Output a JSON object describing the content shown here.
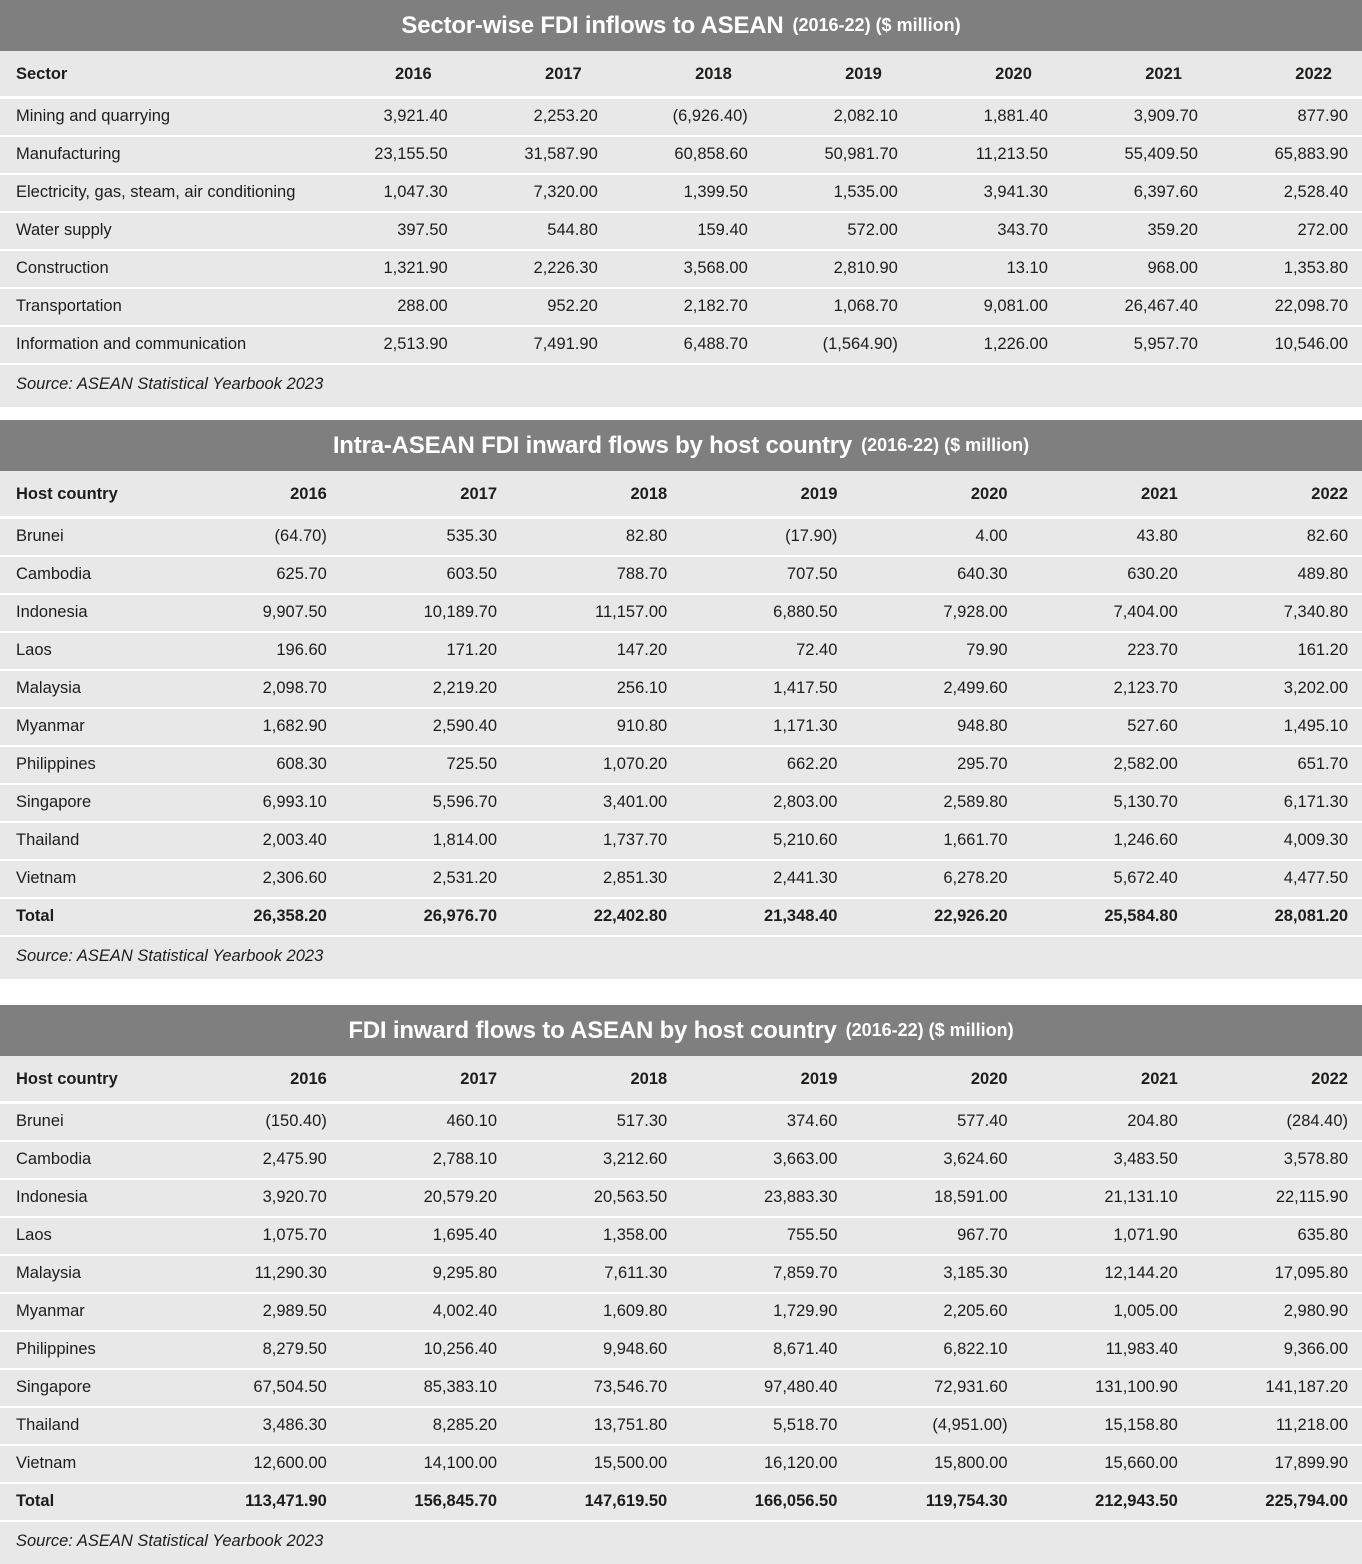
{
  "colors": {
    "title_bar_bg": "#7f7f7f",
    "title_text": "#ffffff",
    "table_bg": "#e8e8e8",
    "row_separator": "#ffffff",
    "body_text": "#1d1d1b"
  },
  "tables": [
    {
      "title_main": "Sector-wise FDI inflows to ASEAN",
      "title_sub": "(2016-22) ($ million)",
      "first_col_header": "Sector",
      "years": [
        "2016",
        "2017",
        "2018",
        "2019",
        "2020",
        "2021",
        "2022"
      ],
      "rows": [
        {
          "label": "Mining and quarrying",
          "values": [
            "3,921.40",
            "2,253.20",
            "(6,926.40)",
            "2,082.10",
            "1,881.40",
            "3,909.70",
            "877.90"
          ]
        },
        {
          "label": "Manufacturing",
          "values": [
            "23,155.50",
            "31,587.90",
            "60,858.60",
            "50,981.70",
            "11,213.50",
            "55,409.50",
            "65,883.90"
          ]
        },
        {
          "label": "Electricity, gas, steam, air conditioning",
          "values": [
            "1,047.30",
            "7,320.00",
            "1,399.50",
            "1,535.00",
            "3,941.30",
            "6,397.60",
            "2,528.40"
          ]
        },
        {
          "label": "Water supply",
          "values": [
            "397.50",
            "544.80",
            "159.40",
            "572.00",
            "343.70",
            "359.20",
            "272.00"
          ]
        },
        {
          "label": "Construction",
          "values": [
            "1,321.90",
            "2,226.30",
            "3,568.00",
            "2,810.90",
            "13.10",
            "968.00",
            "1,353.80"
          ]
        },
        {
          "label": "Transportation",
          "values": [
            "288.00",
            "952.20",
            "2,182.70",
            "1,068.70",
            "9,081.00",
            "26,467.40",
            "22,098.70"
          ]
        },
        {
          "label": "Information and communication",
          "values": [
            "2,513.90",
            "7,491.90",
            "6,488.70",
            "(1,564.90)",
            "1,226.00",
            "5,957.70",
            "10,546.00"
          ]
        }
      ],
      "source": "Source: ASEAN Statistical Yearbook 2023"
    },
    {
      "title_main": "Intra-ASEAN FDI inward flows by host country",
      "title_sub": "(2016-22) ($ million)",
      "first_col_header": "Host country",
      "years": [
        "2016",
        "2017",
        "2018",
        "2019",
        "2020",
        "2021",
        "2022"
      ],
      "rows": [
        {
          "label": "Brunei",
          "values": [
            "(64.70)",
            "535.30",
            "82.80",
            "(17.90)",
            "4.00",
            "43.80",
            "82.60"
          ]
        },
        {
          "label": "Cambodia",
          "values": [
            "625.70",
            "603.50",
            "788.70",
            "707.50",
            "640.30",
            "630.20",
            "489.80"
          ]
        },
        {
          "label": "Indonesia",
          "values": [
            "9,907.50",
            "10,189.70",
            "11,157.00",
            "6,880.50",
            "7,928.00",
            "7,404.00",
            "7,340.80"
          ]
        },
        {
          "label": "Laos",
          "values": [
            "196.60",
            "171.20",
            "147.20",
            "72.40",
            "79.90",
            "223.70",
            "161.20"
          ]
        },
        {
          "label": "Malaysia",
          "values": [
            "2,098.70",
            "2,219.20",
            "256.10",
            "1,417.50",
            "2,499.60",
            "2,123.70",
            "3,202.00"
          ]
        },
        {
          "label": "Myanmar",
          "values": [
            "1,682.90",
            "2,590.40",
            "910.80",
            "1,171.30",
            "948.80",
            "527.60",
            "1,495.10"
          ]
        },
        {
          "label": "Philippines",
          "values": [
            "608.30",
            "725.50",
            "1,070.20",
            "662.20",
            "295.70",
            "2,582.00",
            "651.70"
          ]
        },
        {
          "label": "Singapore",
          "values": [
            "6,993.10",
            "5,596.70",
            "3,401.00",
            "2,803.00",
            "2,589.80",
            "5,130.70",
            "6,171.30"
          ]
        },
        {
          "label": "Thailand",
          "values": [
            "2,003.40",
            "1,814.00",
            "1,737.70",
            "5,210.60",
            "1,661.70",
            "1,246.60",
            "4,009.30"
          ]
        },
        {
          "label": "Vietnam",
          "values": [
            "2,306.60",
            "2,531.20",
            "2,851.30",
            "2,441.30",
            "6,278.20",
            "5,672.40",
            "4,477.50"
          ]
        },
        {
          "label": "Total",
          "is_total": true,
          "values": [
            "26,358.20",
            "26,976.70",
            "22,402.80",
            "21,348.40",
            "22,926.20",
            "25,584.80",
            "28,081.20"
          ]
        }
      ],
      "source": "Source: ASEAN Statistical Yearbook 2023"
    },
    {
      "title_main": "FDI inward flows to ASEAN by host country",
      "title_sub": "(2016-22) ($ million)",
      "first_col_header": "Host country",
      "years": [
        "2016",
        "2017",
        "2018",
        "2019",
        "2020",
        "2021",
        "2022"
      ],
      "rows": [
        {
          "label": "Brunei",
          "values": [
            "(150.40)",
            "460.10",
            "517.30",
            "374.60",
            "577.40",
            "204.80",
            "(284.40)"
          ]
        },
        {
          "label": "Cambodia",
          "values": [
            "2,475.90",
            "2,788.10",
            "3,212.60",
            "3,663.00",
            "3,624.60",
            "3,483.50",
            "3,578.80"
          ]
        },
        {
          "label": "Indonesia",
          "values": [
            "3,920.70",
            "20,579.20",
            "20,563.50",
            "23,883.30",
            "18,591.00",
            "21,131.10",
            "22,115.90"
          ]
        },
        {
          "label": "Laos",
          "values": [
            "1,075.70",
            "1,695.40",
            "1,358.00",
            "755.50",
            "967.70",
            "1,071.90",
            "635.80"
          ]
        },
        {
          "label": "Malaysia",
          "values": [
            "11,290.30",
            "9,295.80",
            "7,611.30",
            "7,859.70",
            "3,185.30",
            "12,144.20",
            "17,095.80"
          ]
        },
        {
          "label": "Myanmar",
          "values": [
            "2,989.50",
            "4,002.40",
            "1,609.80",
            "1,729.90",
            "2,205.60",
            "1,005.00",
            "2,980.90"
          ]
        },
        {
          "label": "Philippines",
          "values": [
            "8,279.50",
            "10,256.40",
            "9,948.60",
            "8,671.40",
            "6,822.10",
            "11,983.40",
            "9,366.00"
          ]
        },
        {
          "label": "Singapore",
          "values": [
            "67,504.50",
            "85,383.10",
            "73,546.70",
            "97,480.40",
            "72,931.60",
            "131,100.90",
            "141,187.20"
          ]
        },
        {
          "label": "Thailand",
          "values": [
            "3,486.30",
            "8,285.20",
            "13,751.80",
            "5,518.70",
            "(4,951.00)",
            "15,158.80",
            "11,218.00"
          ]
        },
        {
          "label": "Vietnam",
          "values": [
            "12,600.00",
            "14,100.00",
            "15,500.00",
            "16,120.00",
            "15,800.00",
            "15,660.00",
            "17,899.90"
          ]
        },
        {
          "label": "Total",
          "is_total": true,
          "values": [
            "113,471.90",
            "156,845.70",
            "147,619.50",
            "166,056.50",
            "119,754.30",
            "212,943.50",
            "225,794.00"
          ]
        }
      ],
      "source": "Source: ASEAN Statistical Yearbook 2023"
    }
  ]
}
